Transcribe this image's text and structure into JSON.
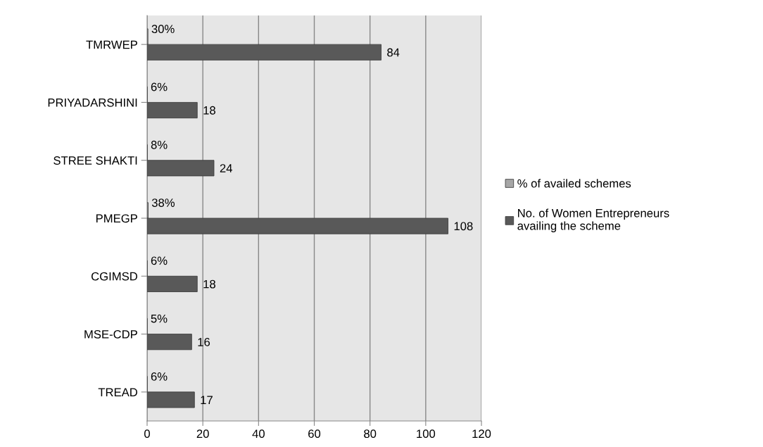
{
  "chart_data": {
    "type": "bar",
    "orientation": "horizontal",
    "categories": [
      "TMRWEP",
      "PRIYADARSHINI",
      "STREE SHAKTI",
      "PMEGP",
      "CGIMSD",
      "MSE-CDP",
      "TREAD"
    ],
    "series": [
      {
        "name": "% of availed schemes",
        "color": "#a6a6a6",
        "values": [
          0.3,
          0.06,
          0.08,
          0.38,
          0.06,
          0.05,
          0.06
        ],
        "value_labels": [
          "30%",
          "6%",
          "8%",
          "38%",
          "6%",
          "5%",
          "6%"
        ]
      },
      {
        "name": "No. of Women Entrepreneurs availing the scheme",
        "color": "#595959",
        "values": [
          84,
          18,
          24,
          108,
          18,
          16,
          17
        ],
        "value_labels": [
          "84",
          "18",
          "24",
          "108",
          "18",
          "16",
          "17"
        ]
      }
    ],
    "xlim": [
      0,
      120
    ],
    "xticks": [
      0,
      20,
      40,
      60,
      80,
      100,
      120
    ],
    "grid": "x",
    "legend": "right"
  }
}
